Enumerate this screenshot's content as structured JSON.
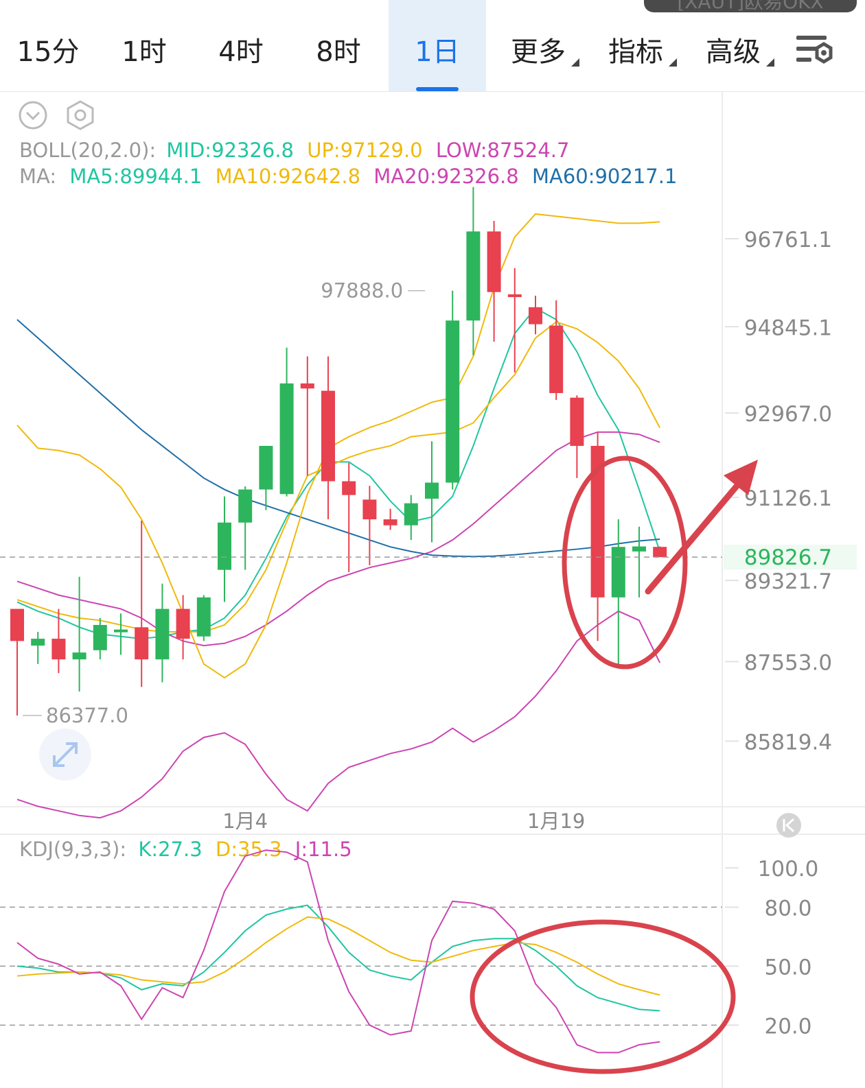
{
  "top_badge": "[XAUT]欧易OKX",
  "tabs": [
    {
      "label": "15分",
      "active": false,
      "dropdown": false
    },
    {
      "label": "1时",
      "active": false,
      "dropdown": false
    },
    {
      "label": "4时",
      "active": false,
      "dropdown": false
    },
    {
      "label": "8时",
      "active": false,
      "dropdown": false
    },
    {
      "label": "1日",
      "active": true,
      "dropdown": false
    },
    {
      "label": "更多",
      "active": false,
      "dropdown": true
    },
    {
      "label": "指标",
      "active": false,
      "dropdown": true
    },
    {
      "label": "高级",
      "active": false,
      "dropdown": true
    }
  ],
  "icons": {
    "toolbar_settings": "chart-settings-icon",
    "collapse": "chevron-down-circle-icon",
    "settings": "gear-icon",
    "expand": "expand-arrows-icon",
    "back_to_latest": "skip-to-start-icon"
  },
  "colors": {
    "up": "#2db55d",
    "down": "#e8414f",
    "mid": "#20c5a0",
    "up_band": "#f0b90b",
    "low_band": "#cc44b0",
    "ma60": "#1f6fa8",
    "annotation": "#d9434d",
    "price_current": "#2db55d"
  },
  "indicators": {
    "boll_label": "BOLL(20,2.0):",
    "boll_values": [
      {
        "text": "MID:92326.8",
        "color": "#20c5a0"
      },
      {
        "text": "UP:97129.0",
        "color": "#f0b90b"
      },
      {
        "text": "LOW:87524.7",
        "color": "#cc44b0"
      }
    ],
    "ma_label": "MA:",
    "ma_values": [
      {
        "text": "MA5:89944.1",
        "color": "#20c5a0"
      },
      {
        "text": "MA10:92642.8",
        "color": "#f0b90b"
      },
      {
        "text": "MA20:92326.8",
        "color": "#cc44b0"
      },
      {
        "text": "MA60:90217.1",
        "color": "#1f6fa8"
      }
    ],
    "kdj_label": "KDJ(9,3,3):",
    "kdj_values": [
      {
        "text": "K:27.3",
        "color": "#20c5a0"
      },
      {
        "text": "D:35.3",
        "color": "#f0b90b"
      },
      {
        "text": "J:11.5",
        "color": "#cc44b0"
      }
    ]
  },
  "chart_data": [
    {
      "type": "candlestick",
      "y_ticks": [
        "96761.1",
        "94845.1",
        "92967.0",
        "91126.1",
        "89321.7",
        "87553.0",
        "85819.4"
      ],
      "ylim": [
        84600,
        99600
      ],
      "x_tick_labels": [
        {
          "label": "1月4",
          "index": 11
        },
        {
          "label": "1月19",
          "index": 26
        }
      ],
      "current_price": "89826.7",
      "max_label": "97888.0",
      "max_index": 21,
      "min_label": "86377.0",
      "min_index": 0,
      "candles": [
        {
          "o": 88700,
          "h": 88700,
          "l": 86377,
          "c": 88000
        },
        {
          "o": 87900,
          "h": 88200,
          "l": 87500,
          "c": 88050
        },
        {
          "o": 88050,
          "h": 88700,
          "l": 87300,
          "c": 87600
        },
        {
          "o": 87600,
          "h": 89400,
          "l": 86900,
          "c": 87750
        },
        {
          "o": 87800,
          "h": 88500,
          "l": 87600,
          "c": 88350
        },
        {
          "o": 88200,
          "h": 88600,
          "l": 87700,
          "c": 88250
        },
        {
          "o": 88300,
          "h": 90620,
          "l": 87000,
          "c": 87600
        },
        {
          "o": 87600,
          "h": 89250,
          "l": 87100,
          "c": 88700
        },
        {
          "o": 88700,
          "h": 89000,
          "l": 87600,
          "c": 88050
        },
        {
          "o": 88100,
          "h": 89000,
          "l": 88000,
          "c": 88950
        },
        {
          "o": 89550,
          "h": 91150,
          "l": 88850,
          "c": 90580
        },
        {
          "o": 90580,
          "h": 91370,
          "l": 89550,
          "c": 91300
        },
        {
          "o": 91300,
          "h": 92250,
          "l": 90850,
          "c": 92250
        },
        {
          "o": 91200,
          "h": 94390,
          "l": 91150,
          "c": 93610
        },
        {
          "o": 93610,
          "h": 94200,
          "l": 91600,
          "c": 93500
        },
        {
          "o": 93450,
          "h": 94200,
          "l": 90650,
          "c": 91480
        },
        {
          "o": 91480,
          "h": 91880,
          "l": 89500,
          "c": 91180
        },
        {
          "o": 91080,
          "h": 91380,
          "l": 89650,
          "c": 90650
        },
        {
          "o": 90650,
          "h": 90880,
          "l": 90420,
          "c": 90520
        },
        {
          "o": 90520,
          "h": 91180,
          "l": 90200,
          "c": 91000
        },
        {
          "o": 91100,
          "h": 92350,
          "l": 90150,
          "c": 91450
        },
        {
          "o": 91450,
          "h": 95630,
          "l": 91300,
          "c": 94980
        },
        {
          "o": 94980,
          "h": 97888,
          "l": 94220,
          "c": 96920
        },
        {
          "o": 96920,
          "h": 97150,
          "l": 94520,
          "c": 95600
        },
        {
          "o": 95550,
          "h": 96120,
          "l": 93850,
          "c": 95520
        },
        {
          "o": 95270,
          "h": 95520,
          "l": 94680,
          "c": 94900
        },
        {
          "o": 94870,
          "h": 95420,
          "l": 93250,
          "c": 93400
        },
        {
          "o": 93300,
          "h": 93350,
          "l": 91550,
          "c": 92250
        },
        {
          "o": 92250,
          "h": 92550,
          "l": 88000,
          "c": 88950
        },
        {
          "o": 88950,
          "h": 90650,
          "l": 87400,
          "c": 90050
        },
        {
          "o": 89950,
          "h": 90490,
          "l": 88950,
          "c": 90060
        },
        {
          "o": 90050,
          "h": 90060,
          "l": 89930,
          "c": 89826.7
        }
      ],
      "series": [
        {
          "name": "MA5",
          "values": [
            88850,
            88650,
            88500,
            88300,
            88150,
            88100,
            88050,
            88100,
            88200,
            88250,
            88500,
            89000,
            89800,
            90700,
            91400,
            91900,
            91900,
            91600,
            91050,
            90600,
            90700,
            91150,
            92250,
            93500,
            94700,
            95250,
            95000,
            94300,
            93350,
            92600,
            91300,
            89944.1
          ]
        },
        {
          "name": "MA10",
          "values": [
            88900,
            88750,
            88600,
            88500,
            88450,
            88350,
            88250,
            88200,
            88200,
            88200,
            88350,
            88800,
            89550,
            90600,
            91600,
            91800,
            92000,
            92150,
            92250,
            92450,
            92500,
            92550,
            92750,
            93300,
            93800,
            94600,
            94950,
            94800,
            94500,
            94100,
            93500,
            92642.8
          ]
        },
        {
          "name": "MA20",
          "values": [
            89300,
            89150,
            89000,
            88900,
            88800,
            88700,
            88500,
            88200,
            88000,
            87900,
            87950,
            88100,
            88350,
            88650,
            89000,
            89300,
            89450,
            89600,
            89700,
            89800,
            89950,
            90200,
            90550,
            90950,
            91350,
            91750,
            92150,
            92400,
            92550,
            92550,
            92500,
            92326.8
          ]
        },
        {
          "name": "MA60",
          "values": [
            95000,
            94600,
            94200,
            93800,
            93400,
            93000,
            92600,
            92250,
            91900,
            91550,
            91300,
            91100,
            90950,
            90800,
            90650,
            90500,
            90350,
            90200,
            90050,
            89950,
            89870,
            89850,
            89840,
            89850,
            89880,
            89920,
            89960,
            90000,
            90050,
            90120,
            90180,
            90217.1
          ]
        },
        {
          "name": "UP",
          "values": [
            92700,
            92200,
            92150,
            92050,
            91750,
            91350,
            90650,
            89700,
            88600,
            87500,
            87200,
            87500,
            88350,
            89700,
            91200,
            92200,
            92450,
            92650,
            92800,
            93000,
            93200,
            93300,
            94200,
            95700,
            96800,
            97300,
            97250,
            97200,
            97150,
            97100,
            97100,
            97129.0
          ]
        },
        {
          "name": "LOW",
          "values": [
            84550,
            84400,
            84300,
            84200,
            84150,
            84300,
            84600,
            85000,
            85600,
            85900,
            86000,
            85750,
            85100,
            84550,
            84300,
            84900,
            85250,
            85400,
            85550,
            85650,
            85800,
            86100,
            85800,
            86050,
            86350,
            86800,
            87350,
            88000,
            88350,
            88650,
            88450,
            87524.7
          ]
        }
      ]
    },
    {
      "type": "line",
      "name": "KDJ",
      "y_ticks": [
        "100.0",
        "80.0",
        "50.0",
        "20.0"
      ],
      "ylim": [
        -12,
        114
      ],
      "series": [
        {
          "name": "K",
          "values": [
            50,
            49,
            47,
            47,
            46.5,
            44,
            38,
            41,
            40,
            47,
            57,
            68,
            76,
            79,
            81,
            70,
            57,
            48,
            45,
            43,
            52,
            60,
            63,
            64,
            64,
            58,
            50,
            40,
            34,
            31,
            28,
            27.3
          ]
        },
        {
          "name": "D",
          "values": [
            45,
            46,
            46.5,
            47,
            46.5,
            45.5,
            43,
            42,
            41,
            42,
            47,
            54,
            62,
            69,
            75,
            74,
            69,
            63,
            57,
            53,
            52,
            55,
            58,
            60,
            62,
            61,
            57,
            52,
            46,
            41,
            38,
            35.3
          ]
        },
        {
          "name": "J",
          "values": [
            62,
            54,
            51,
            46,
            47,
            40,
            23,
            39,
            34,
            58,
            88,
            106,
            109,
            108,
            103,
            63,
            37,
            20,
            15,
            17,
            63,
            83,
            82,
            79,
            68,
            41,
            29,
            10,
            6,
            6,
            10,
            11.5
          ]
        }
      ]
    }
  ]
}
